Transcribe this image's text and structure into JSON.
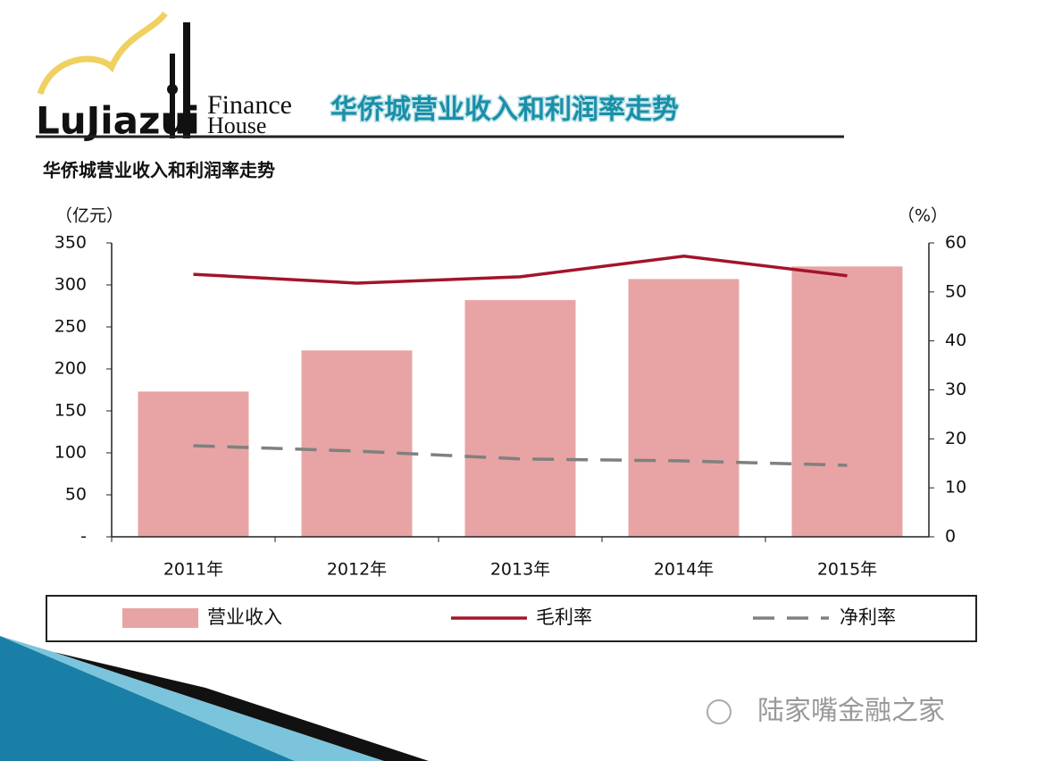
{
  "header": {
    "logo": [
      "LuJiazui",
      "Finance",
      "House"
    ],
    "title": "华侨城营业收入和利润率走势"
  },
  "chart_data": {
    "type": "bar",
    "title": "华侨城营业收入和利润率走势",
    "y_label": "（亿元）",
    "y2_label": "（%）",
    "categories": [
      "2011年",
      "2012年",
      "2013年",
      "2014年",
      "2015年"
    ],
    "series": [
      {
        "name": "营业收入",
        "type": "bar",
        "color": "#e8a4a4",
        "values": [
          173,
          222,
          282,
          307,
          322
        ]
      },
      {
        "name": "毛利率",
        "type": "line",
        "color": "#a3142a",
        "axis": "y2",
        "values": [
          53.6,
          51.8,
          53.1,
          57.3,
          53.3
        ]
      },
      {
        "name": "净利率",
        "type": "line",
        "dashed": true,
        "color": "#808080",
        "axis": "y2",
        "values": [
          18.6,
          17.5,
          15.9,
          15.5,
          14.6
        ]
      }
    ],
    "ylim": [
      0,
      350
    ],
    "yticks": [
      {
        "value": 0,
        "label": "-"
      },
      50,
      100,
      150,
      200,
      250,
      300,
      350
    ],
    "y2lim": [
      0,
      60
    ],
    "y2ticks": [
      0,
      10,
      20,
      30,
      40,
      50,
      60
    ]
  },
  "watermark": "陆家嘴金融之家"
}
